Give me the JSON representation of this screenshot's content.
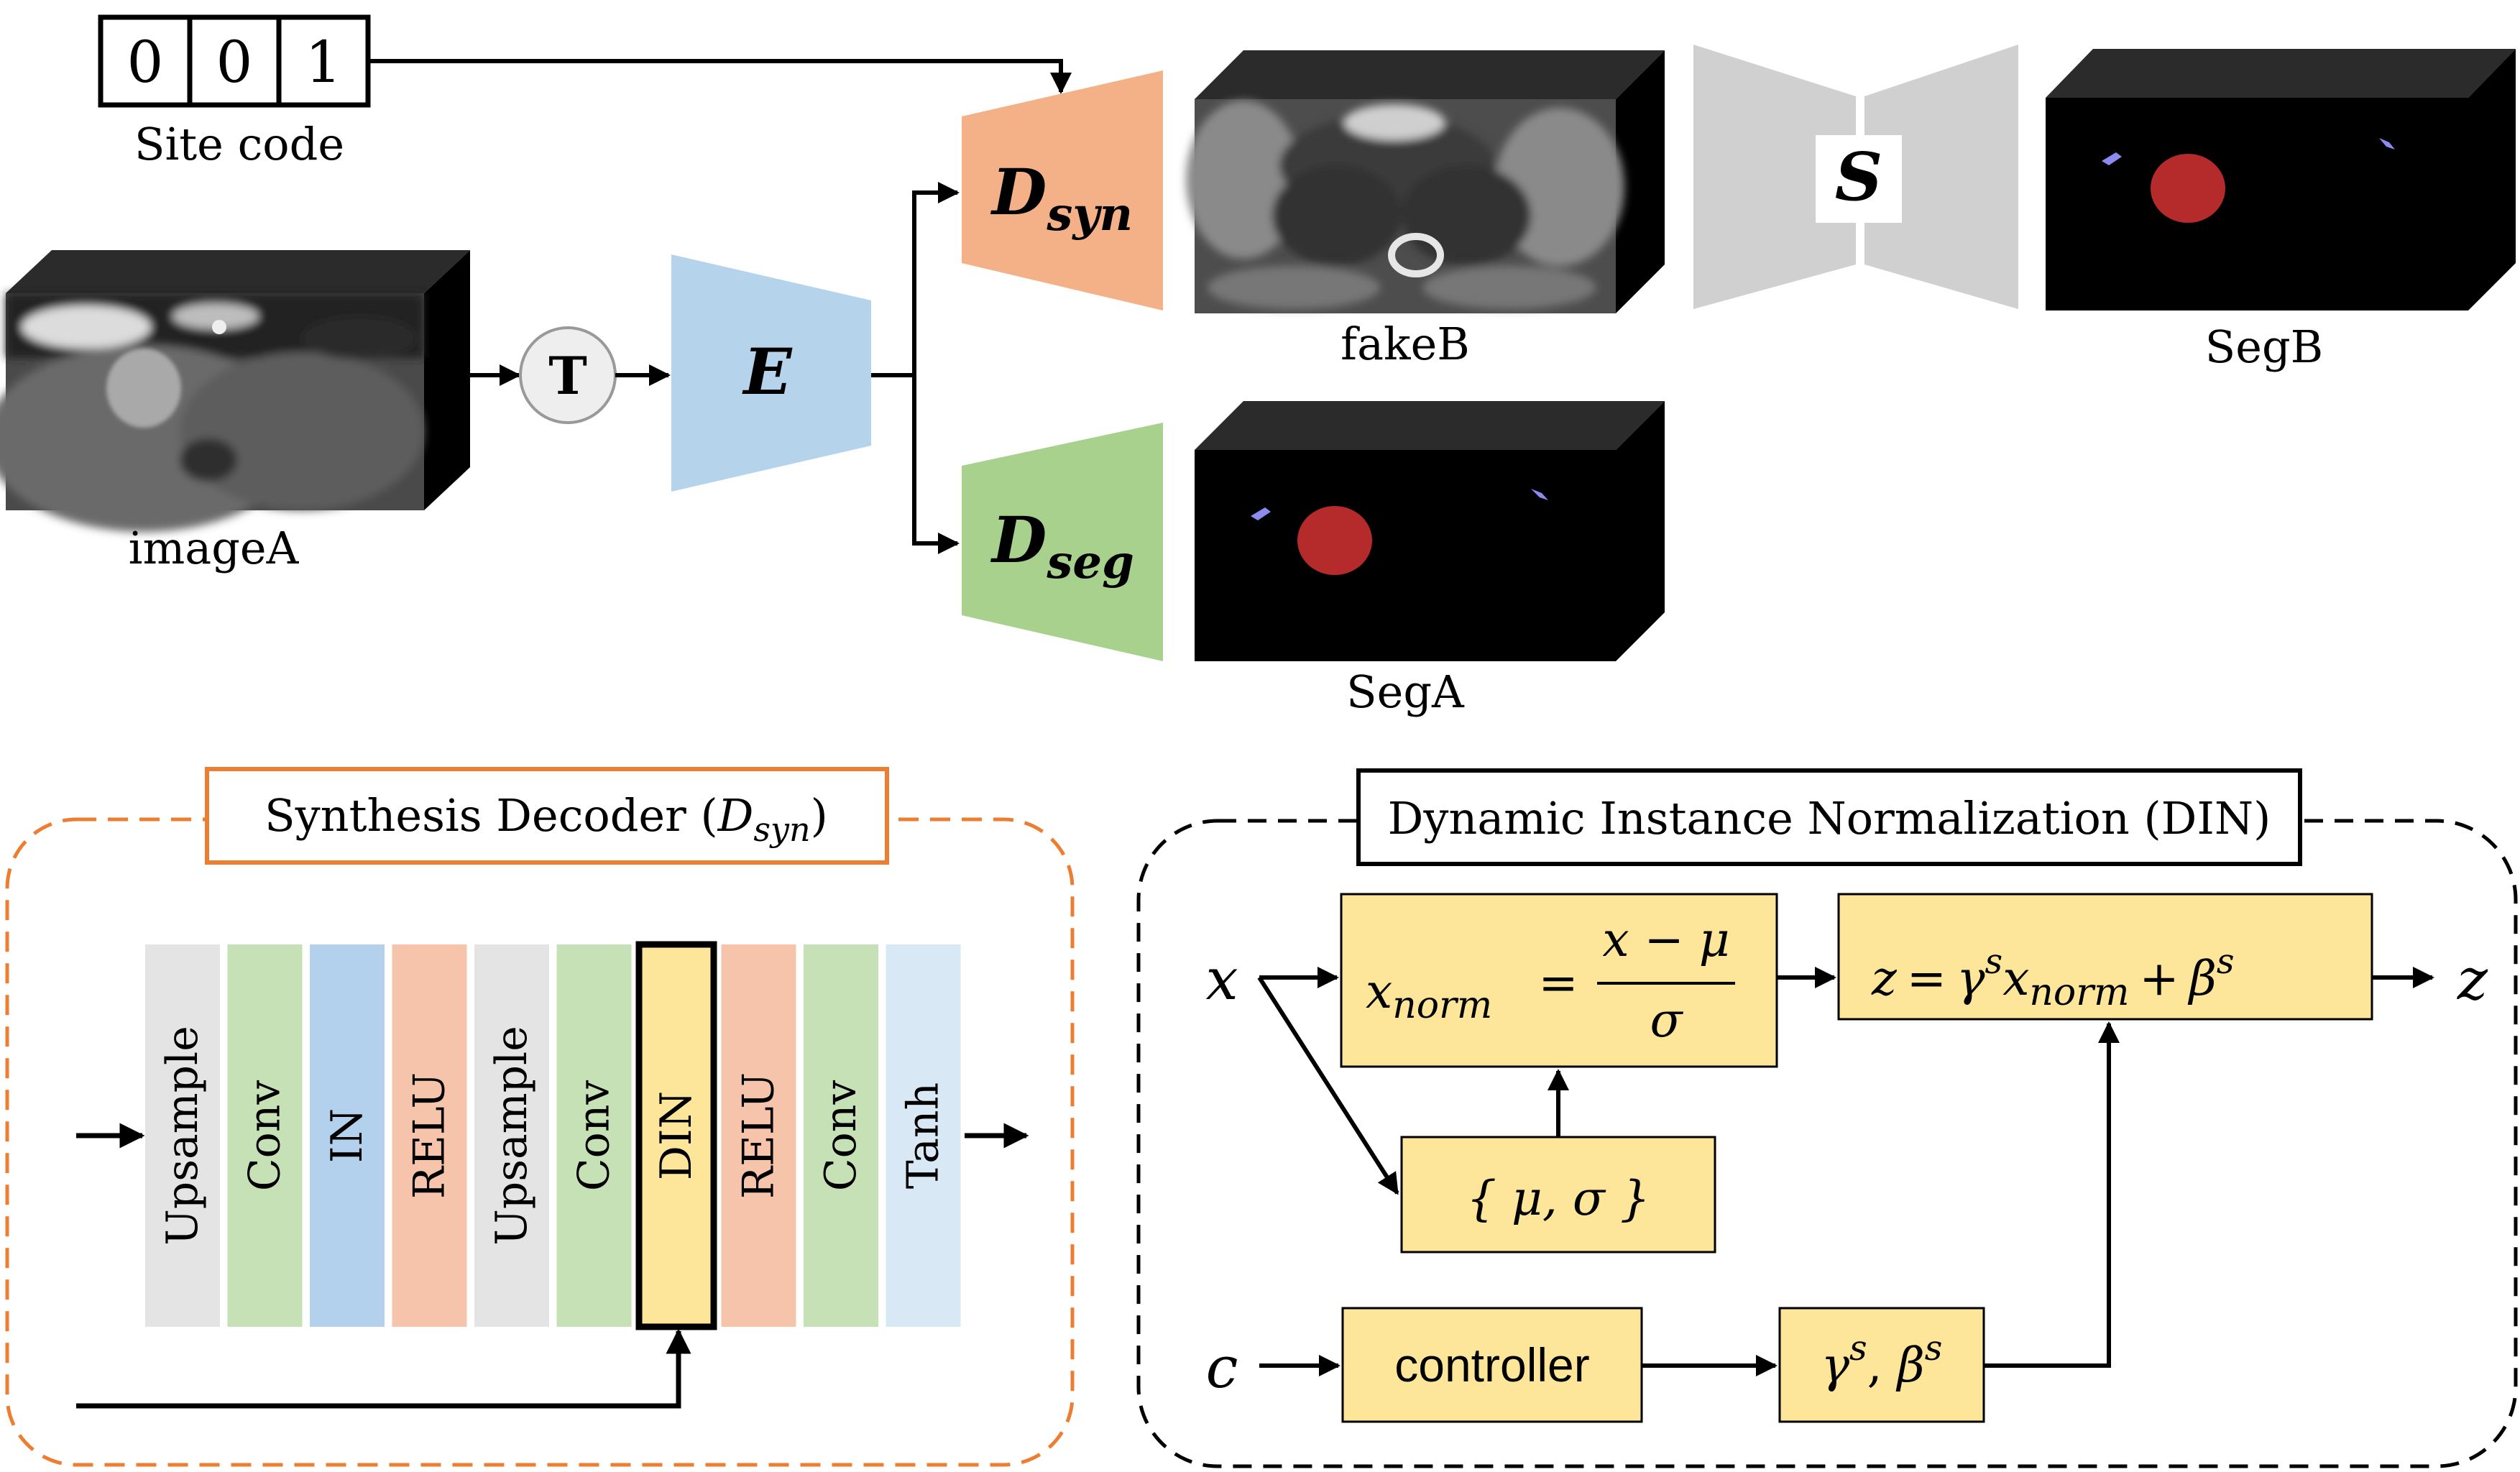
{
  "site_code": {
    "digits": [
      "0",
      "0",
      "1"
    ],
    "label": "Site code"
  },
  "transform": {
    "label": "T"
  },
  "encoder": {
    "label": "E",
    "color": "#b6d3ec"
  },
  "decoders": {
    "syn": {
      "main": "D",
      "sub": "syn",
      "color": "#f4b187"
    },
    "seg": {
      "main": "D",
      "sub": "seg",
      "color": "#a9d18e"
    }
  },
  "segmenter": {
    "label": "S",
    "color": "#d0d0d0"
  },
  "volumes": {
    "imageA": "imageA",
    "fakeB": "fakeB",
    "segA": "SegA",
    "segB": "SegB"
  },
  "colors": {
    "tumor": "#b52a2a",
    "cochlea": "#8c8cf0",
    "orange_dashed": "#ed7d31",
    "yellow_box": "#fde69a"
  },
  "synthesis_panel": {
    "title": "Synthesis Decoder (",
    "title_main": "D",
    "title_sub": "syn",
    "title_end": ")",
    "layers": [
      {
        "label": "Upsample",
        "color": "#e4e4e4"
      },
      {
        "label": "Conv",
        "color": "#c6e1b5"
      },
      {
        "label": "IN",
        "color": "#b3d1ec"
      },
      {
        "label": "RELU",
        "color": "#f6c4aa"
      },
      {
        "label": "Upsample",
        "color": "#e4e4e4"
      },
      {
        "label": "Conv",
        "color": "#c6e1b5"
      },
      {
        "label": "DIN",
        "color": "#fde69a"
      },
      {
        "label": "RELU",
        "color": "#f6c4aa"
      },
      {
        "label": "Conv",
        "color": "#c6e1b5"
      },
      {
        "label": "Tanh",
        "color": "#d9e8f5"
      }
    ]
  },
  "din_panel": {
    "title": "Dynamic Instance Normalization (DIN)",
    "input_x": "x",
    "input_c": "c",
    "output_z": "z",
    "norm_lhs": "x",
    "norm_lhs_sub": "norm",
    "norm_eq": "=",
    "norm_num": "x − μ",
    "norm_den": "σ",
    "out_z": "z",
    "out_eq": "=",
    "out_gamma": "γ",
    "out_gamma_sup": "s",
    "out_x": "x",
    "out_x_sub": "norm",
    "out_plus": "+",
    "out_beta": "β",
    "out_beta_sup": "s",
    "stats_label": "{ μ, σ }",
    "controller_label": "controller",
    "params_gamma": "γ",
    "params_gamma_sup": "s",
    "params_comma": ", ",
    "params_beta": "β",
    "params_beta_sup": "s"
  }
}
